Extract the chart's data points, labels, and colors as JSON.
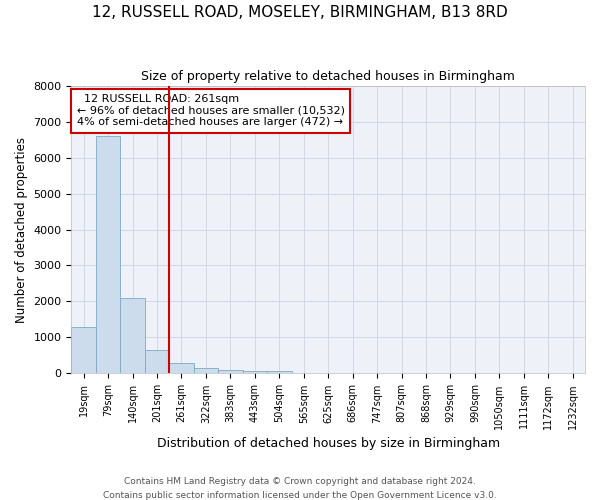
{
  "title": "12, RUSSELL ROAD, MOSELEY, BIRMINGHAM, B13 8RD",
  "subtitle": "Size of property relative to detached houses in Birmingham",
  "xlabel": "Distribution of detached houses by size in Birmingham",
  "ylabel": "Number of detached properties",
  "footer_line1": "Contains HM Land Registry data © Crown copyright and database right 2024.",
  "footer_line2": "Contains public sector information licensed under the Open Government Licence v3.0.",
  "annotation_line1": "  12 RUSSELL ROAD: 261sqm  ",
  "annotation_line2": "← 96% of detached houses are smaller (10,532)",
  "annotation_line3": "4% of semi-detached houses are larger (472) →",
  "bar_categories": [
    "19sqm",
    "79sqm",
    "140sqm",
    "201sqm",
    "261sqm",
    "322sqm",
    "383sqm",
    "443sqm",
    "504sqm",
    "565sqm",
    "625sqm",
    "686sqm",
    "747sqm",
    "807sqm",
    "868sqm",
    "929sqm",
    "990sqm",
    "1050sqm",
    "1111sqm",
    "1172sqm",
    "1232sqm"
  ],
  "bar_values": [
    1300,
    6600,
    2100,
    650,
    300,
    160,
    100,
    60,
    80,
    10,
    4,
    2,
    1,
    0,
    0,
    0,
    0,
    0,
    0,
    0,
    0
  ],
  "bar_color": "#ccdcec",
  "bar_edge_color": "#7aaac8",
  "red_line_color": "#cc0000",
  "annotation_box_color": "#cc0000",
  "grid_color": "#d0d8e8",
  "background_color": "#eef2f8",
  "ylim": [
    0,
    8000
  ],
  "yticks": [
    0,
    1000,
    2000,
    3000,
    4000,
    5000,
    6000,
    7000,
    8000
  ],
  "prop_bin_index": 4
}
